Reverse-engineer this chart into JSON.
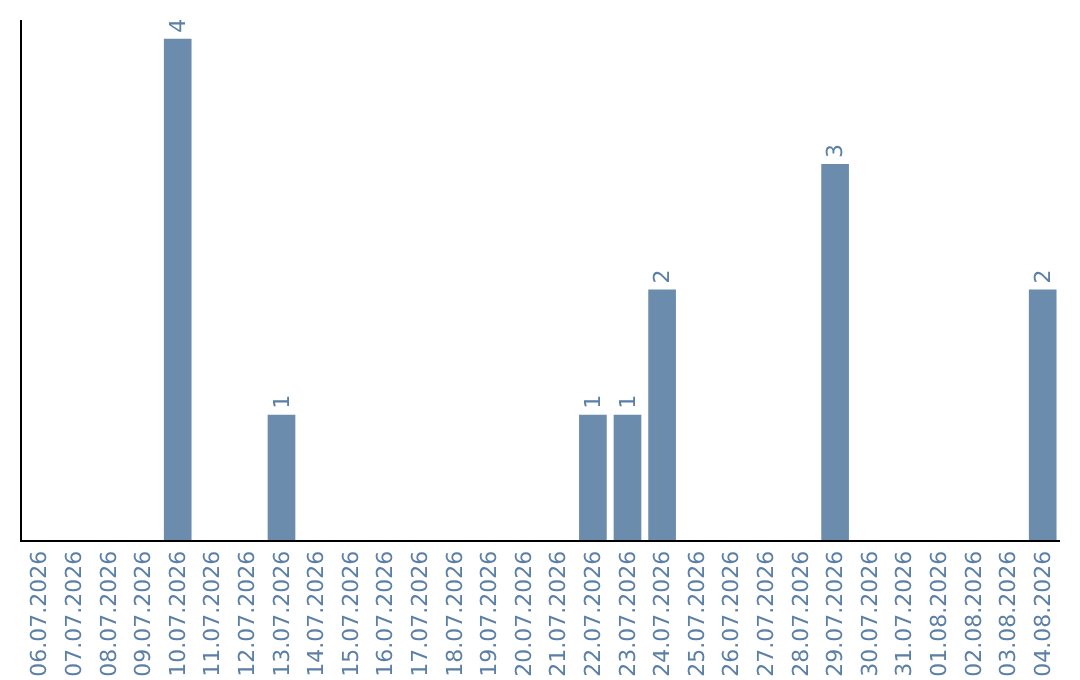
{
  "chart_data": {
    "type": "bar",
    "categories": [
      "06.07.2026",
      "07.07.2026",
      "08.07.2026",
      "09.07.2026",
      "10.07.2026",
      "11.07.2026",
      "12.07.2026",
      "13.07.2026",
      "14.07.2026",
      "15.07.2026",
      "16.07.2026",
      "17.07.2026",
      "18.07.2026",
      "19.07.2026",
      "20.07.2026",
      "21.07.2026",
      "22.07.2026",
      "23.07.2026",
      "24.07.2026",
      "25.07.2026",
      "26.07.2026",
      "27.07.2026",
      "28.07.2026",
      "29.07.2026",
      "30.07.2026",
      "31.07.2026",
      "01.08.2026",
      "02.08.2026",
      "03.08.2026",
      "04.08.2026"
    ],
    "values": [
      null,
      null,
      null,
      null,
      4,
      null,
      null,
      1,
      null,
      null,
      null,
      null,
      null,
      null,
      null,
      null,
      1,
      1,
      2,
      null,
      null,
      null,
      null,
      3,
      null,
      null,
      null,
      null,
      null,
      2
    ],
    "color": "#6b8cad",
    "ylim": [
      0,
      4.15
    ],
    "data_labels": true,
    "grid": false,
    "legend": false,
    "tick_labels": "x"
  }
}
